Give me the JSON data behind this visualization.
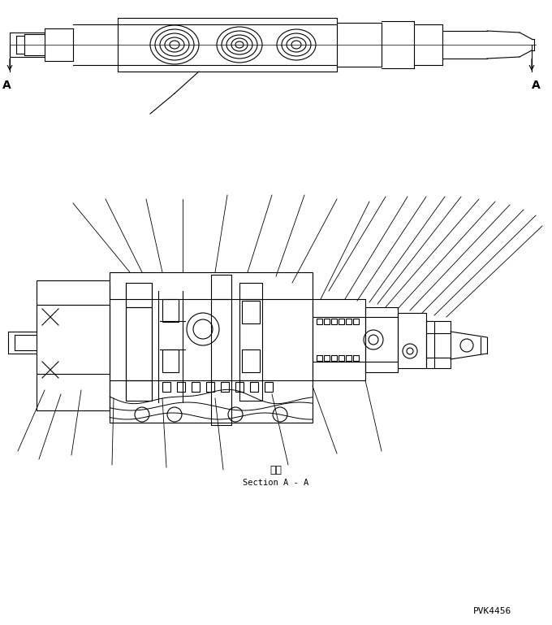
{
  "background_color": "#ffffff",
  "line_color": "#000000",
  "fig_width": 6.8,
  "fig_height": 7.69,
  "dpi": 100,
  "section_label_jp": "断面",
  "section_label_en": "Section A - A",
  "part_number": "PVK4456",
  "label_A_left": "A",
  "label_A_right": "A"
}
